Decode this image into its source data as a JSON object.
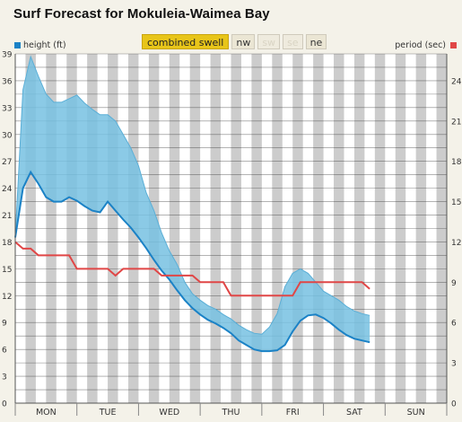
{
  "title": "Surf Forecast for Mokuleia-Waimea Bay",
  "tabs": [
    {
      "label": "combined swell",
      "state": "active"
    },
    {
      "label": "nw",
      "state": "normal"
    },
    {
      "label": "sw",
      "state": "disabled"
    },
    {
      "label": "se",
      "state": "disabled"
    },
    {
      "label": "ne",
      "state": "normal"
    }
  ],
  "legend": {
    "height_label": "height (ft)",
    "period_label": "period (sec)",
    "height_color": "#1b82c6",
    "period_color": "#e04646"
  },
  "chart_data": {
    "type": "area",
    "grid": true,
    "legend_placement": "top-left and top-right",
    "left_axis": {
      "label": "height (ft)",
      "range": [
        0,
        39
      ],
      "ticks": [
        0,
        3,
        6,
        9,
        12,
        15,
        18,
        21,
        24,
        27,
        30,
        33,
        36,
        39
      ]
    },
    "right_axis": {
      "label": "period (sec)",
      "range": [
        0,
        26
      ],
      "ticks": [
        0,
        3,
        6,
        9,
        12,
        15,
        18,
        21,
        24
      ]
    },
    "x": {
      "unit": "day",
      "range": [
        0,
        7
      ],
      "day_labels": [
        "MON",
        "TUE",
        "WED",
        "THU",
        "FRI",
        "SAT",
        "SUN"
      ]
    },
    "night_shading_color": "#cccccc",
    "series": [
      {
        "name": "height (ft)",
        "axis": "left",
        "fill_color": "#77c1e2",
        "line_color": "#1b82c6",
        "x": [
          0,
          0.125,
          0.25,
          0.375,
          0.5,
          0.625,
          0.75,
          0.875,
          1.0,
          1.125,
          1.25,
          1.375,
          1.5,
          1.625,
          1.75,
          1.875,
          2.0,
          2.125,
          2.25,
          2.375,
          2.5,
          2.625,
          2.75,
          2.875,
          3.0,
          3.125,
          3.25,
          3.375,
          3.5,
          3.625,
          3.75,
          3.875,
          4.0,
          4.125,
          4.25,
          4.375,
          4.5,
          4.625,
          4.75,
          4.875,
          5.0,
          5.125,
          5.25,
          5.375,
          5.5,
          5.625,
          5.75
        ],
        "low": [
          18.5,
          24.0,
          25.8,
          24.5,
          23.0,
          22.5,
          22.5,
          23.0,
          22.6,
          22.0,
          21.5,
          21.3,
          22.5,
          21.5,
          20.5,
          19.6,
          18.5,
          17.3,
          16.0,
          14.8,
          13.8,
          12.6,
          11.5,
          10.6,
          9.9,
          9.3,
          8.9,
          8.4,
          7.8,
          7.0,
          6.5,
          6.0,
          5.8,
          5.8,
          5.9,
          6.5,
          8.0,
          9.2,
          9.8,
          9.9,
          9.5,
          8.9,
          8.2,
          7.6,
          7.2,
          7.0,
          6.8
        ],
        "high": [
          18.5,
          35.0,
          38.7,
          36.5,
          34.5,
          33.6,
          33.6,
          34.0,
          34.4,
          33.5,
          32.8,
          32.2,
          32.2,
          31.5,
          30.0,
          28.5,
          26.5,
          23.5,
          21.5,
          19.0,
          17.0,
          15.5,
          13.5,
          12.2,
          11.5,
          10.9,
          10.5,
          9.9,
          9.4,
          8.7,
          8.2,
          7.8,
          7.7,
          8.5,
          10.0,
          13.0,
          14.5,
          15.0,
          14.5,
          13.5,
          12.5,
          12.0,
          11.5,
          10.8,
          10.3,
          10.0,
          9.8
        ]
      },
      {
        "name": "period (sec)",
        "axis": "right",
        "line_color": "#e04646",
        "x": [
          0,
          0.125,
          0.25,
          0.375,
          0.5,
          0.625,
          0.75,
          0.875,
          1.0,
          1.125,
          1.25,
          1.375,
          1.5,
          1.625,
          1.75,
          1.875,
          2.0,
          2.125,
          2.25,
          2.375,
          2.5,
          2.625,
          2.75,
          2.875,
          3.0,
          3.125,
          3.25,
          3.375,
          3.5,
          3.625,
          3.75,
          3.875,
          4.0,
          4.125,
          4.25,
          4.375,
          4.5,
          4.625,
          4.75,
          4.875,
          5.0,
          5.125,
          5.25,
          5.375,
          5.5,
          5.625,
          5.75
        ],
        "values": [
          12,
          11.5,
          11.5,
          11,
          11,
          11,
          11,
          11,
          10,
          10,
          10,
          10,
          10,
          9.5,
          10,
          10,
          10,
          10,
          10,
          9.5,
          9.5,
          9.5,
          9.5,
          9.5,
          9,
          9,
          9,
          9,
          8,
          8,
          8,
          8,
          8,
          8,
          8,
          8,
          8,
          9,
          9,
          9,
          9,
          9,
          9,
          9,
          9,
          9,
          8.5
        ]
      }
    ]
  }
}
